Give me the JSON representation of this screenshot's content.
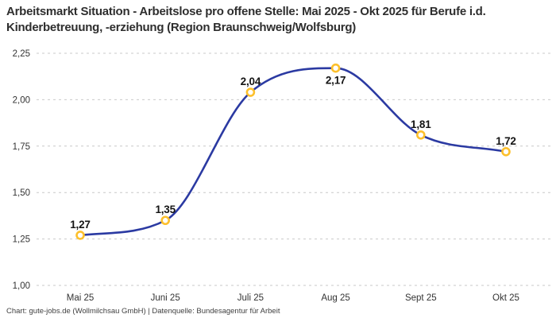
{
  "header": {
    "title": "Arbeitsmarkt Situation - Arbeitslose pro offene Stelle: Mai 2025 - Okt 2025 für Berufe i.d. Kinderbetreuung, -erziehung (Region Braunschweig/Wolfsburg)"
  },
  "footer": {
    "attribution": "Chart: gute-jobs.de (Wollmilchsau GmbH) | Datenquelle: Bundesagentur für Arbeit"
  },
  "chart_data": {
    "type": "line",
    "title": "Arbeitsmarkt Situation - Arbeitslose pro offene Stelle: Mai 2025 - Okt 2025 für Berufe i.d. Kinderbetreuung, -erziehung (Region Braunschweig/Wolfsburg)",
    "categories": [
      "Mai 25",
      "Juni 25",
      "Juli 25",
      "Aug 25",
      "Sept 25",
      "Okt 25"
    ],
    "values": [
      1.27,
      1.35,
      2.04,
      2.17,
      1.81,
      1.72
    ],
    "point_labels": [
      "1,27",
      "1,35",
      "2,04",
      "2,17",
      "1,81",
      "1,72"
    ],
    "point_label_positions": [
      "above",
      "above",
      "above",
      "below",
      "above",
      "above"
    ],
    "ylim": [
      1.0,
      2.25
    ],
    "ytick_step": 0.25,
    "ytick_labels": [
      "1,00",
      "1,25",
      "1,50",
      "1,75",
      "2,00",
      "2,25"
    ],
    "xlabel": "",
    "ylabel": "",
    "grid": "horizontal-dashed",
    "legend": "none",
    "curve": "monotone",
    "colors": {
      "line": "#2b3aa2",
      "marker_stroke": "#fdc02c",
      "marker_fill": "#ffffff",
      "gridline": "#c9c9c9",
      "tick_text": "#333333",
      "title_text": "#2e2e2e",
      "footer_text": "#3f3f3f"
    }
  }
}
